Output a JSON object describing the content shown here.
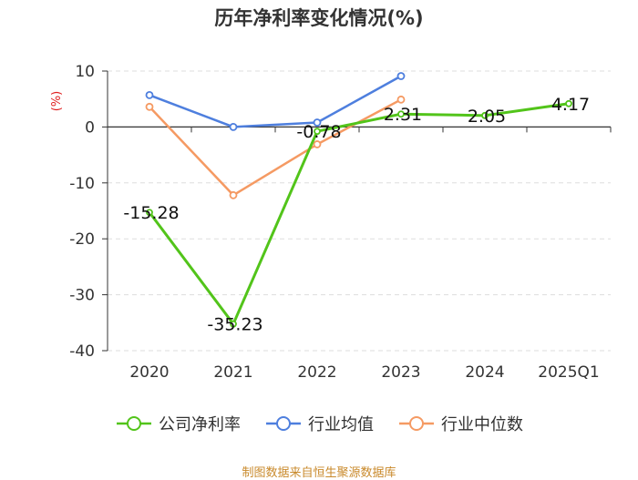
{
  "source_note": "制图数据来自恒生聚源数据库",
  "chart_data": {
    "type": "line",
    "title": "历年净利率变化情况(%)",
    "ylabel": "(%)",
    "xlabel": "",
    "categories": [
      "2020",
      "2021",
      "2022",
      "2023",
      "2024",
      "2025Q1"
    ],
    "ylim": [
      -40,
      10
    ],
    "yticks": [
      10,
      0,
      -10,
      -20,
      -30,
      -40
    ],
    "grid": "horizontal dashed",
    "legend_position": "bottom",
    "series": [
      {
        "name": "公司净利率",
        "color": "#52c41a",
        "values": [
          -15.28,
          -35.23,
          -0.78,
          2.31,
          2.05,
          4.17
        ],
        "labels": [
          "-15.28",
          "-35.23",
          "-0.78",
          "2.31",
          "2.05",
          "4.17"
        ]
      },
      {
        "name": "行业均值",
        "color": "#4e7fde",
        "values": [
          5.7,
          0.0,
          0.8,
          9.1,
          null,
          null
        ]
      },
      {
        "name": "行业中位数",
        "color": "#f59a63",
        "values": [
          3.6,
          -12.2,
          -3.1,
          4.9,
          null,
          null
        ]
      }
    ]
  }
}
